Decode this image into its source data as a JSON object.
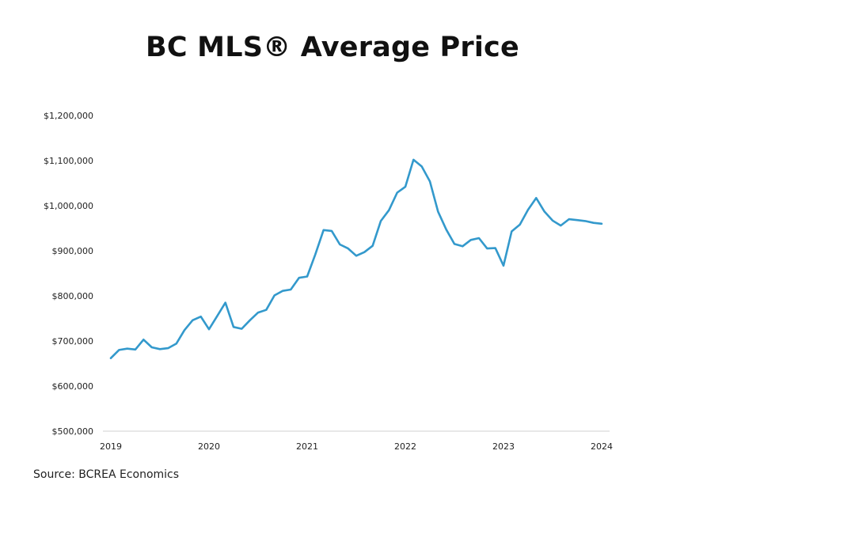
{
  "chart_data": {
    "type": "line",
    "title": "BC MLS® Average Price",
    "xlabel": "",
    "ylabel": "",
    "source": "Source: BCREA Economics",
    "ylim": [
      500000,
      1200000
    ],
    "xlim": [
      2019,
      2024
    ],
    "y_ticks": [
      500000,
      600000,
      700000,
      800000,
      900000,
      1000000,
      1100000,
      1200000
    ],
    "y_tick_labels": [
      "$500,000",
      "$600,000",
      "$700,000",
      "$800,000",
      "$900,000",
      "$1,000,000",
      "$1,100,000",
      "$1,200,000"
    ],
    "x_ticks": [
      2019,
      2020,
      2021,
      2022,
      2023,
      2024
    ],
    "x_tick_labels": [
      "2019",
      "2020",
      "2021",
      "2022",
      "2023",
      "2024"
    ],
    "grid": false,
    "line_color": "#3399cc",
    "series": [
      {
        "x": [
          2019.0,
          2019.083,
          2019.167,
          2019.25,
          2019.333,
          2019.417,
          2019.5,
          2019.583,
          2019.667,
          2019.75,
          2019.833,
          2019.917,
          2020.0,
          2020.083,
          2020.167,
          2020.25,
          2020.333,
          2020.417,
          2020.5,
          2020.583,
          2020.667,
          2020.75,
          2020.833,
          2020.917,
          2021.0,
          2021.083,
          2021.167,
          2021.25,
          2021.333,
          2021.417,
          2021.5,
          2021.583,
          2021.667,
          2021.75,
          2021.833,
          2021.917,
          2022.0,
          2022.083,
          2022.167,
          2022.25,
          2022.333,
          2022.417,
          2022.5,
          2022.583,
          2022.667,
          2022.75,
          2022.833,
          2022.917,
          2023.0,
          2023.083,
          2023.167,
          2023.25,
          2023.333,
          2023.417,
          2023.5,
          2023.583,
          2023.667,
          2023.75,
          2023.833,
          2023.917,
          2024.0
        ],
        "values": [
          662000,
          680000,
          683000,
          681000,
          703000,
          686000,
          682000,
          684000,
          694000,
          724000,
          746000,
          754000,
          726000,
          755000,
          785000,
          731000,
          727000,
          746000,
          763000,
          769000,
          801000,
          811000,
          814000,
          840000,
          843000,
          892000,
          946000,
          944000,
          914000,
          905000,
          889000,
          897000,
          911000,
          966000,
          990000,
          1029000,
          1042000,
          1102000,
          1087000,
          1054000,
          987000,
          947000,
          915000,
          910000,
          924000,
          928000,
          905000,
          906000,
          867000,
          943000,
          958000,
          991000,
          1017000,
          987000,
          967000,
          956000,
          970000,
          968000,
          966000,
          962000,
          960000
        ]
      }
    ]
  }
}
